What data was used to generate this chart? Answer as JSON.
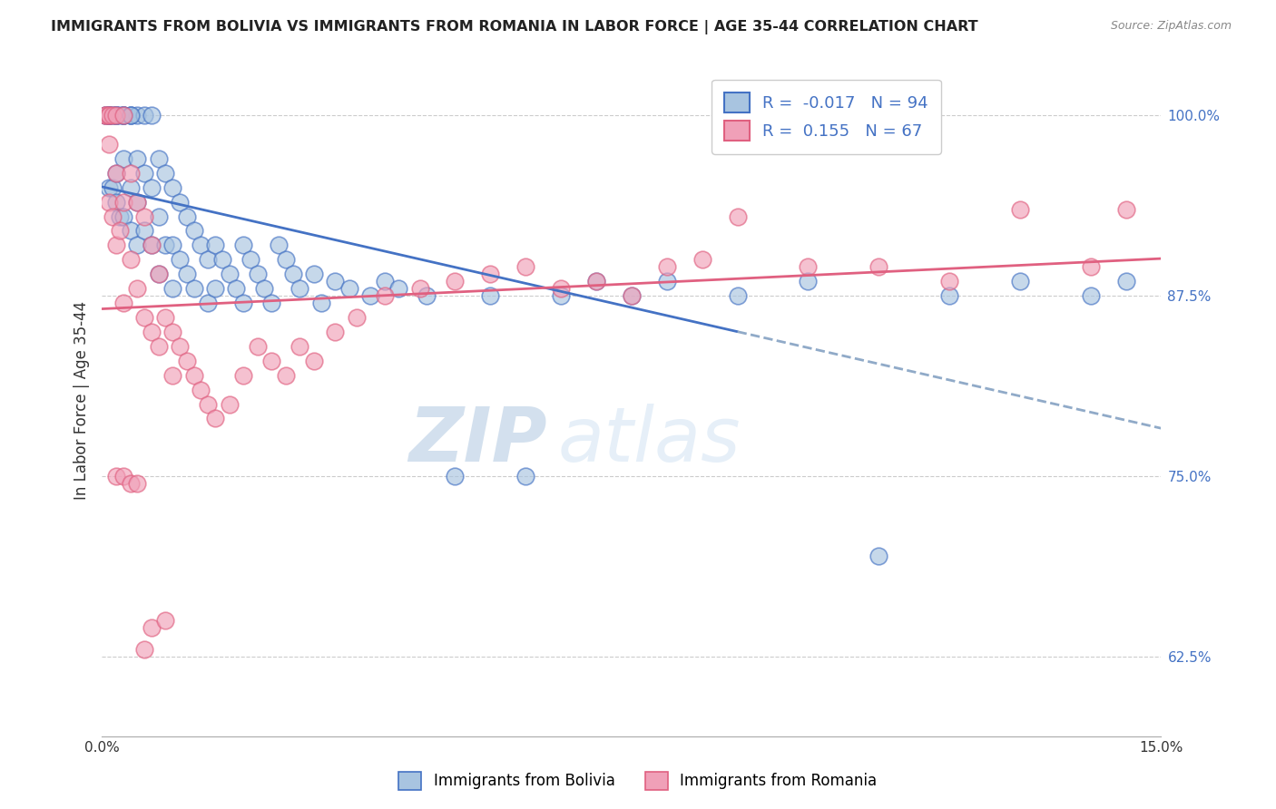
{
  "title": "IMMIGRANTS FROM BOLIVIA VS IMMIGRANTS FROM ROMANIA IN LABOR FORCE | AGE 35-44 CORRELATION CHART",
  "source": "Source: ZipAtlas.com",
  "ylabel": "In Labor Force | Age 35-44",
  "xmin": 0.0,
  "xmax": 0.15,
  "ymin": 0.57,
  "ymax": 1.035,
  "yticks": [
    0.625,
    0.75,
    0.875,
    1.0
  ],
  "ytick_labels": [
    "62.5%",
    "75.0%",
    "87.5%",
    "100.0%"
  ],
  "xticks": [
    0.0,
    0.03,
    0.06,
    0.09,
    0.12,
    0.15
  ],
  "xtick_labels": [
    "0.0%",
    "",
    "",
    "",
    "",
    "15.0%"
  ],
  "bolivia_R": -0.017,
  "bolivia_N": 94,
  "romania_R": 0.155,
  "romania_N": 67,
  "bolivia_color": "#a8c4e0",
  "romania_color": "#f0a0b8",
  "bolivia_line_color": "#4472c4",
  "romania_line_color": "#e06080",
  "trend_dashed_color": "#90aac8",
  "watermark_zip": "ZIP",
  "watermark_atlas": "atlas",
  "bolivia_scatter_x": [
    0.0005,
    0.0005,
    0.001,
    0.001,
    0.001,
    0.001,
    0.001,
    0.0015,
    0.0015,
    0.0015,
    0.002,
    0.002,
    0.002,
    0.002,
    0.002,
    0.0025,
    0.0025,
    0.003,
    0.003,
    0.003,
    0.003,
    0.003,
    0.004,
    0.004,
    0.004,
    0.004,
    0.005,
    0.005,
    0.005,
    0.005,
    0.006,
    0.006,
    0.006,
    0.007,
    0.007,
    0.007,
    0.008,
    0.008,
    0.008,
    0.009,
    0.009,
    0.01,
    0.01,
    0.01,
    0.011,
    0.011,
    0.012,
    0.012,
    0.013,
    0.013,
    0.014,
    0.015,
    0.015,
    0.016,
    0.016,
    0.017,
    0.018,
    0.019,
    0.02,
    0.02,
    0.021,
    0.022,
    0.023,
    0.024,
    0.025,
    0.026,
    0.027,
    0.028,
    0.03,
    0.031,
    0.033,
    0.035,
    0.038,
    0.04,
    0.042,
    0.046,
    0.05,
    0.055,
    0.06,
    0.065,
    0.07,
    0.075,
    0.08,
    0.09,
    0.1,
    0.11,
    0.12,
    0.13,
    0.14,
    0.145,
    0.001,
    0.002,
    0.003,
    0.004
  ],
  "bolivia_scatter_y": [
    1.0,
    1.0,
    1.0,
    1.0,
    1.0,
    1.0,
    0.95,
    1.0,
    1.0,
    0.95,
    1.0,
    1.0,
    1.0,
    0.96,
    0.94,
    1.0,
    0.93,
    1.0,
    1.0,
    1.0,
    0.97,
    0.93,
    1.0,
    1.0,
    0.95,
    0.92,
    1.0,
    0.97,
    0.94,
    0.91,
    1.0,
    0.96,
    0.92,
    1.0,
    0.95,
    0.91,
    0.97,
    0.93,
    0.89,
    0.96,
    0.91,
    0.95,
    0.91,
    0.88,
    0.94,
    0.9,
    0.93,
    0.89,
    0.92,
    0.88,
    0.91,
    0.9,
    0.87,
    0.91,
    0.88,
    0.9,
    0.89,
    0.88,
    0.91,
    0.87,
    0.9,
    0.89,
    0.88,
    0.87,
    0.91,
    0.9,
    0.89,
    0.88,
    0.89,
    0.87,
    0.885,
    0.88,
    0.875,
    0.885,
    0.88,
    0.875,
    0.75,
    0.875,
    0.75,
    0.875,
    0.885,
    0.875,
    0.885,
    0.875,
    0.885,
    0.695,
    0.875,
    0.885,
    0.875,
    0.885,
    1.0,
    1.0,
    1.0,
    1.0
  ],
  "romania_scatter_x": [
    0.0005,
    0.0005,
    0.001,
    0.001,
    0.001,
    0.001,
    0.0015,
    0.0015,
    0.002,
    0.002,
    0.002,
    0.0025,
    0.003,
    0.003,
    0.003,
    0.004,
    0.004,
    0.005,
    0.005,
    0.006,
    0.006,
    0.007,
    0.007,
    0.008,
    0.008,
    0.009,
    0.01,
    0.01,
    0.011,
    0.012,
    0.013,
    0.014,
    0.015,
    0.016,
    0.018,
    0.02,
    0.022,
    0.024,
    0.026,
    0.028,
    0.03,
    0.033,
    0.036,
    0.04,
    0.045,
    0.05,
    0.055,
    0.06,
    0.065,
    0.07,
    0.075,
    0.08,
    0.085,
    0.09,
    0.1,
    0.11,
    0.12,
    0.13,
    0.14,
    0.145,
    0.002,
    0.003,
    0.004,
    0.005,
    0.006,
    0.007,
    0.009
  ],
  "romania_scatter_y": [
    1.0,
    1.0,
    1.0,
    1.0,
    0.98,
    0.94,
    1.0,
    0.93,
    1.0,
    0.96,
    0.91,
    0.92,
    1.0,
    0.94,
    0.87,
    0.96,
    0.9,
    0.94,
    0.88,
    0.93,
    0.86,
    0.91,
    0.85,
    0.89,
    0.84,
    0.86,
    0.85,
    0.82,
    0.84,
    0.83,
    0.82,
    0.81,
    0.8,
    0.79,
    0.8,
    0.82,
    0.84,
    0.83,
    0.82,
    0.84,
    0.83,
    0.85,
    0.86,
    0.875,
    0.88,
    0.885,
    0.89,
    0.895,
    0.88,
    0.885,
    0.875,
    0.895,
    0.9,
    0.93,
    0.895,
    0.895,
    0.885,
    0.935,
    0.895,
    0.935,
    0.75,
    0.75,
    0.745,
    0.745,
    0.63,
    0.645,
    0.65
  ]
}
